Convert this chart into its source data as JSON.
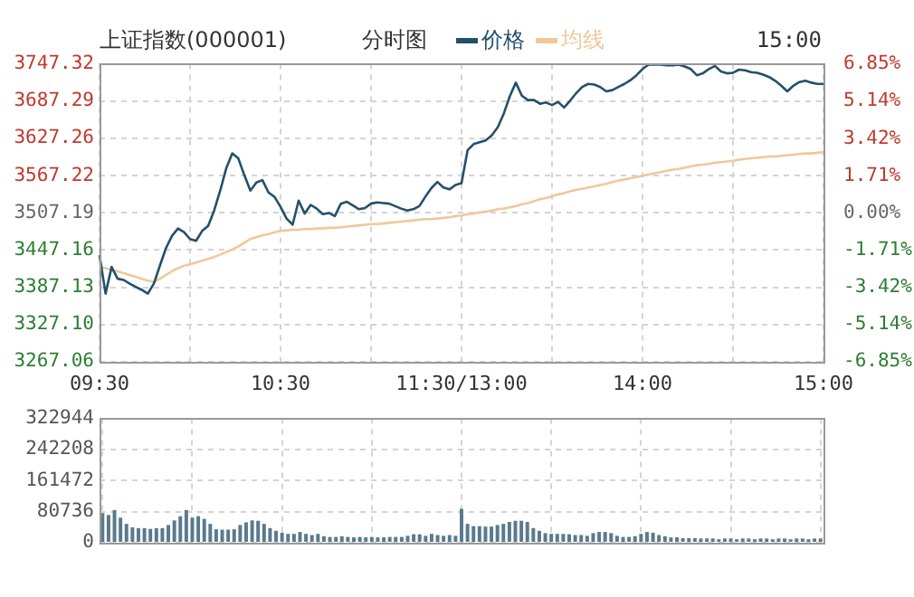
{
  "chart_data": [
    {
      "type": "line",
      "title": "上证指数(000001)",
      "subtitle": "分时图",
      "annotations": [
        "15:00"
      ],
      "legend": "top",
      "grid": true,
      "categories": [
        "09:30",
        null,
        null,
        null,
        null,
        null,
        null,
        null,
        null,
        null,
        null,
        null,
        null,
        null,
        null,
        null,
        null,
        null,
        null,
        null,
        null,
        null,
        null,
        null,
        null,
        null,
        null,
        null,
        null,
        null,
        "10:30",
        null,
        null,
        null,
        null,
        null,
        null,
        null,
        null,
        null,
        null,
        null,
        null,
        null,
        null,
        null,
        null,
        null,
        null,
        null,
        null,
        null,
        null,
        null,
        null,
        null,
        null,
        null,
        null,
        null,
        "11:30/13:00",
        null,
        null,
        null,
        null,
        null,
        null,
        null,
        null,
        null,
        null,
        null,
        null,
        null,
        null,
        null,
        null,
        null,
        null,
        null,
        null,
        null,
        null,
        null,
        null,
        null,
        null,
        null,
        null,
        null,
        "14:00",
        null,
        null,
        null,
        null,
        null,
        null,
        null,
        null,
        null,
        null,
        null,
        null,
        null,
        null,
        null,
        null,
        null,
        null,
        null,
        null,
        null,
        null,
        null,
        null,
        null,
        null,
        null,
        null,
        null,
        "15:00"
      ],
      "series": [
        {
          "name": "价格",
          "color": "#24506a",
          "values": [
            3439,
            3377,
            3420,
            3401,
            3399,
            3393,
            3388,
            3383,
            3377,
            3393,
            3422,
            3450,
            3470,
            3482,
            3476,
            3465,
            3462,
            3478,
            3486,
            3511,
            3543,
            3579,
            3603,
            3595,
            3568,
            3543,
            3556,
            3560,
            3540,
            3533,
            3517,
            3498,
            3488,
            3527,
            3506,
            3520,
            3514,
            3505,
            3507,
            3502,
            3522,
            3525,
            3519,
            3513,
            3515,
            3522,
            3524,
            3523,
            3522,
            3518,
            3514,
            3511,
            3513,
            3518,
            3533,
            3547,
            3557,
            3548,
            3545,
            3552,
            3555,
            3608,
            3618,
            3621,
            3624,
            3632,
            3645,
            3667,
            3695,
            3717,
            3696,
            3689,
            3689,
            3683,
            3685,
            3681,
            3686,
            3677,
            3688,
            3700,
            3710,
            3715,
            3714,
            3710,
            3703,
            3705,
            3710,
            3715,
            3721,
            3729,
            3739,
            3746,
            3746,
            3746,
            3745,
            3745,
            3746,
            3743,
            3739,
            3729,
            3732,
            3739,
            3744,
            3735,
            3732,
            3733,
            3738,
            3737,
            3734,
            3733,
            3730,
            3726,
            3720,
            3712,
            3703,
            3712,
            3718,
            3720,
            3717,
            3715,
            3715
          ]
        },
        {
          "name": "均线",
          "color": "#f0c89a",
          "values": [
            3421,
            3418,
            3415,
            3413,
            3410,
            3407,
            3404,
            3401,
            3398,
            3396,
            3401,
            3407,
            3413,
            3418,
            3422,
            3424,
            3427,
            3430,
            3433,
            3436,
            3440,
            3444,
            3448,
            3453,
            3459,
            3465,
            3468,
            3471,
            3473,
            3476,
            3478,
            3479,
            3480,
            3480,
            3481,
            3481,
            3482,
            3482,
            3483,
            3483,
            3484,
            3485,
            3486,
            3487,
            3488,
            3489,
            3489,
            3490,
            3491,
            3492,
            3493,
            3494,
            3495,
            3496,
            3497,
            3497,
            3498,
            3499,
            3500,
            3502,
            3503,
            3505,
            3506,
            3508,
            3509,
            3511,
            3513,
            3514,
            3516,
            3518,
            3521,
            3523,
            3526,
            3529,
            3531,
            3534,
            3537,
            3539,
            3542,
            3544,
            3546,
            3548,
            3550,
            3552,
            3554,
            3557,
            3559,
            3561,
            3563,
            3565,
            3567,
            3569,
            3571,
            3573,
            3575,
            3577,
            3578,
            3580,
            3582,
            3584,
            3585,
            3586,
            3588,
            3589,
            3590,
            3591,
            3593,
            3594,
            3595,
            3596,
            3597,
            3598,
            3598,
            3599,
            3600,
            3601,
            3602,
            3603,
            3603,
            3604,
            3605
          ]
        }
      ],
      "ylim": [
        3267.06,
        3747.32
      ],
      "yticks": [
        3267.06,
        {
          "value": 3327.1,
          "label": "3327.10"
        },
        3387.13,
        3447.16,
        3507.19,
        3567.22,
        3627.26,
        3687.29,
        3747.32
      ],
      "y2lim": [
        -6.85,
        6.85
      ],
      "y2ticks": [
        {
          "value": -6.85,
          "label": "-6.85%"
        },
        {
          "value": -5.14,
          "label": "-5.14%"
        },
        {
          "value": -3.42,
          "label": "-3.42%"
        },
        {
          "value": -1.71,
          "label": "-1.71%"
        },
        {
          "value": 0,
          "label": "0.00%"
        },
        {
          "value": 1.71,
          "label": "1.71%"
        },
        {
          "value": 3.42,
          "label": "3.42%"
        },
        {
          "value": 5.14,
          "label": "5.14%"
        },
        {
          "value": 6.85,
          "label": "6.85%"
        }
      ]
    },
    {
      "type": "bar",
      "color": "#5a7a8c",
      "grid": true,
      "tick_labels": "y",
      "categories": [
        null,
        null,
        null,
        null,
        null,
        null,
        null,
        null,
        null,
        null,
        null,
        null,
        null,
        null,
        null,
        null,
        null,
        null,
        null,
        null,
        null,
        null,
        null,
        null,
        null,
        null,
        null,
        null,
        null,
        null,
        null,
        null,
        null,
        null,
        null,
        null,
        null,
        null,
        null,
        null,
        null,
        null,
        null,
        null,
        null,
        null,
        null,
        null,
        null,
        null,
        null,
        null,
        null,
        null,
        null,
        null,
        null,
        null,
        null,
        null,
        null,
        null,
        null,
        null,
        null,
        null,
        null,
        null,
        null,
        null,
        null,
        null,
        null,
        null,
        null,
        null,
        null,
        null,
        null,
        null,
        null,
        null,
        null,
        null,
        null,
        null,
        null,
        null,
        null,
        null,
        null,
        null,
        null,
        null,
        null,
        null,
        null,
        null,
        null,
        null,
        null,
        null,
        null,
        null,
        null,
        null,
        null,
        null,
        null,
        null,
        null,
        null,
        null,
        null,
        null,
        null,
        null,
        null,
        null,
        null,
        null
      ],
      "values": [
        77000,
        72000,
        85000,
        65000,
        49000,
        40000,
        38000,
        38000,
        36000,
        38000,
        38000,
        46000,
        58000,
        69000,
        85000,
        65000,
        69000,
        62000,
        49000,
        35000,
        34000,
        34000,
        35000,
        46000,
        53000,
        58000,
        57000,
        49000,
        38000,
        31000,
        26000,
        23000,
        23000,
        28000,
        23000,
        20000,
        23000,
        17000,
        15000,
        15000,
        17000,
        15000,
        14000,
        15000,
        14000,
        15000,
        14000,
        14000,
        15000,
        15000,
        15000,
        18000,
        22000,
        22000,
        18000,
        23000,
        20000,
        18000,
        20000,
        18000,
        88000,
        49000,
        43000,
        43000,
        42000,
        42000,
        46000,
        49000,
        54000,
        57000,
        57000,
        54000,
        38000,
        31000,
        25000,
        23000,
        23000,
        23000,
        22000,
        20000,
        20000,
        18000,
        25000,
        28000,
        28000,
        25000,
        18000,
        15000,
        15000,
        17000,
        23000,
        28000,
        26000,
        20000,
        17000,
        14000,
        14000,
        12000,
        12000,
        12000,
        11000,
        11000,
        11000,
        9000,
        11000,
        11000,
        9000,
        11000,
        11000,
        9000,
        11000,
        11000,
        9000,
        11000,
        11000,
        9000,
        11000,
        11000,
        9000,
        11000,
        11000
      ],
      "ylim": [
        0,
        322944
      ],
      "yticks": [
        0,
        80736,
        161472,
        242208,
        322944
      ]
    }
  ]
}
